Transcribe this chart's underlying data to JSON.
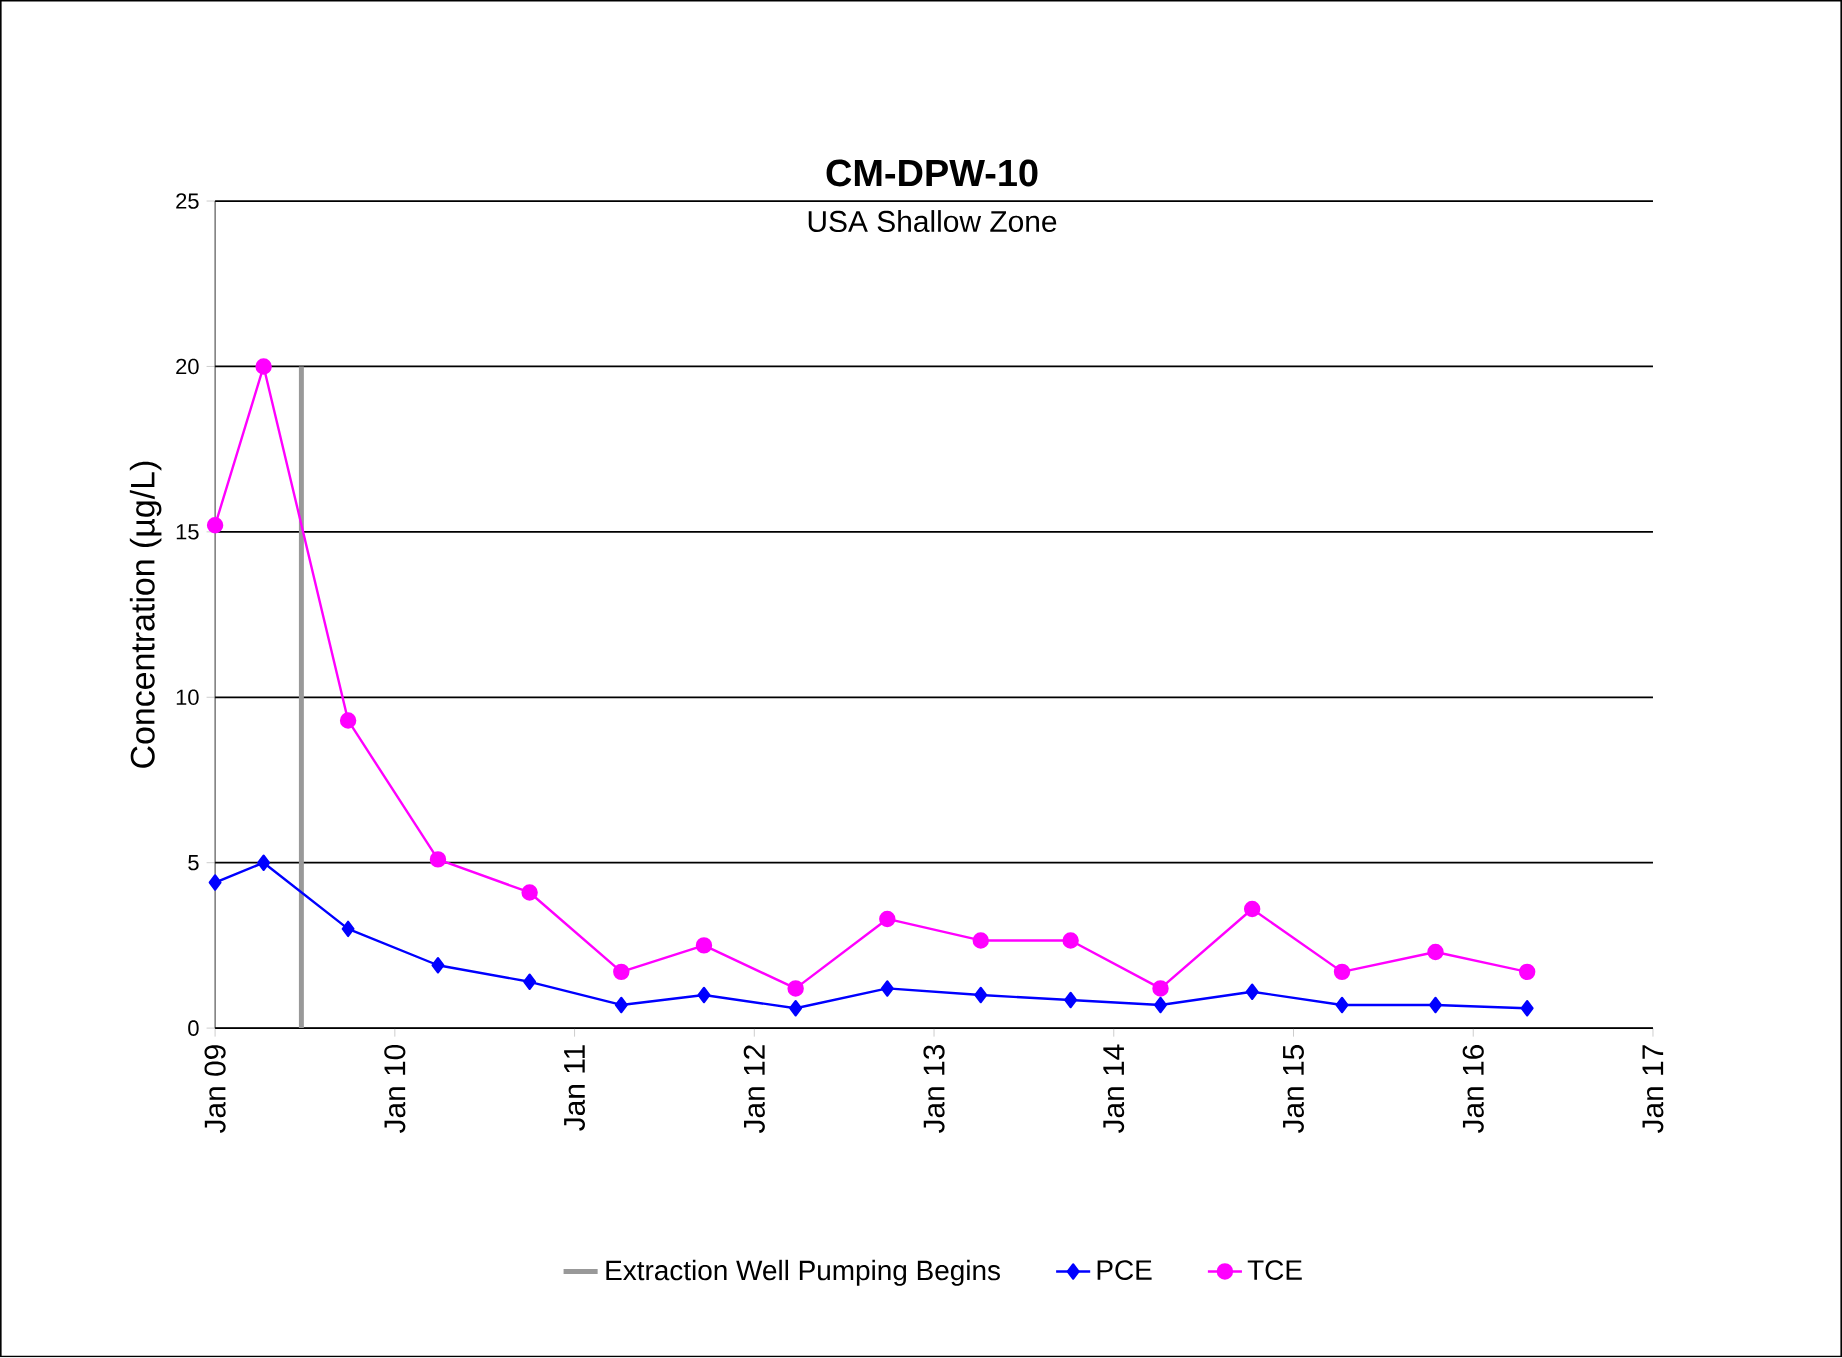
{
  "chart_data": {
    "type": "line",
    "title": "CM-DPW-10",
    "subtitle": "USA Shallow Zone",
    "ylabel": "Concentration (µg/L)",
    "x": [
      "2009-01-01",
      "2009-04-08",
      "2009-09-26",
      "2010-03-27",
      "2010-10-01",
      "2011-04-05",
      "2011-09-19",
      "2012-03-25",
      "2012-09-28",
      "2013-04-03",
      "2013-10-03",
      "2014-04-05",
      "2014-10-09",
      "2015-04-10",
      "2015-10-14",
      "2016-04-18"
    ],
    "xlim": [
      "2009-01-01",
      "2017-01-01"
    ],
    "xticks": [
      {
        "value": "2009-01-01",
        "label": "Jan 09"
      },
      {
        "value": "2010-01-01",
        "label": "Jan 10"
      },
      {
        "value": "2011-01-01",
        "label": "Jan 11"
      },
      {
        "value": "2012-01-01",
        "label": "Jan 12"
      },
      {
        "value": "2013-01-01",
        "label": "Jan 13"
      },
      {
        "value": "2014-01-01",
        "label": "Jan 14"
      },
      {
        "value": "2015-01-01",
        "label": "Jan 15"
      },
      {
        "value": "2016-01-01",
        "label": "Jan 16"
      },
      {
        "value": "2017-01-01",
        "label": "Jan 17"
      }
    ],
    "ylim": [
      0,
      25
    ],
    "yticks": [
      0,
      5,
      10,
      15,
      20,
      25
    ],
    "grid": "y",
    "legend": "bottom",
    "series": [
      {
        "name": "Extraction Well Pumping Begins",
        "color": "#999999",
        "x": [
          "2009-06-25",
          "2009-06-25"
        ],
        "values": [
          0,
          20
        ],
        "marker": "none"
      },
      {
        "name": "PCE",
        "color": "#0000ff",
        "marker": "diamond",
        "values": [
          4.4,
          5.0,
          3.0,
          1.9,
          1.4,
          0.7,
          1.0,
          0.6,
          1.2,
          1.0,
          0.85,
          0.7,
          1.1,
          0.7,
          0.7,
          0.6
        ]
      },
      {
        "name": "TCE",
        "color": "#ff00ff",
        "marker": "circle",
        "values": [
          15.2,
          20.0,
          9.3,
          5.1,
          4.1,
          1.7,
          2.5,
          1.2,
          3.3,
          2.65,
          2.65,
          1.2,
          3.6,
          1.7,
          2.3,
          1.7
        ]
      }
    ]
  }
}
